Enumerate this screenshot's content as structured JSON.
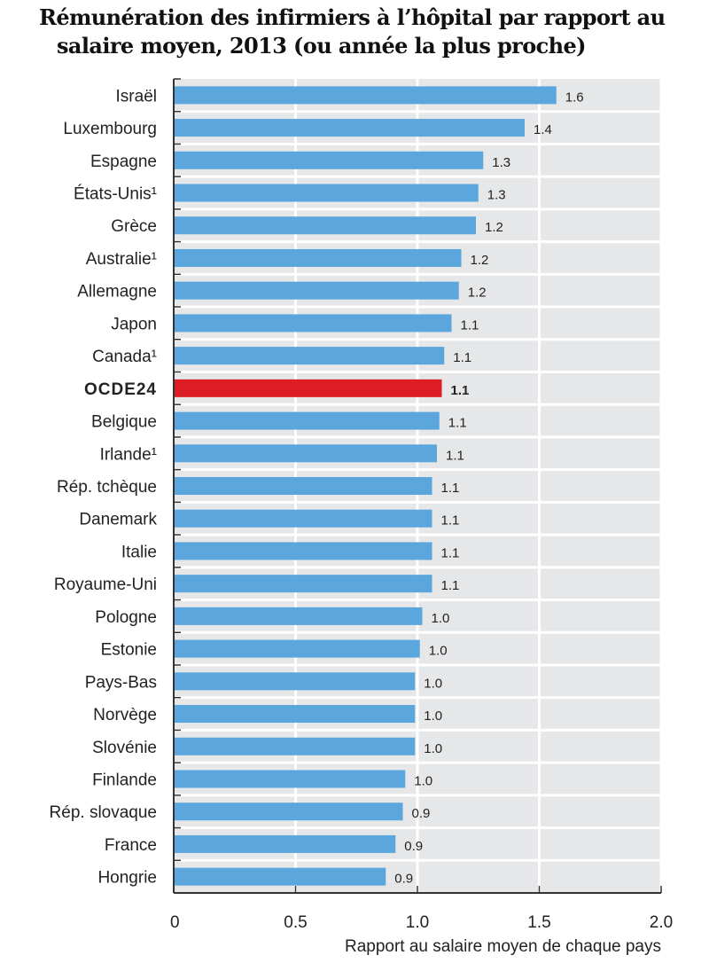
{
  "chart_data": {
    "type": "bar",
    "orientation": "horizontal",
    "title": "Rémunération des infirmiers à l’hôpital par rapport au salaire moyen, 2013 (ou année la plus proche)",
    "title_lines": [
      "Rémunération des infirmiers à l’hôpital par rapport au",
      "salaire moyen, 2013 (ou année la plus proche)"
    ],
    "xlabel": "Rapport au salaire moyen de chaque pays",
    "ylabel": "",
    "xlim": [
      0,
      2.0
    ],
    "xticks": [
      0,
      0.5,
      1.0,
      1.5,
      2.0
    ],
    "xtick_labels": [
      "0",
      "0.5",
      "1.0",
      "1.5",
      "2.0"
    ],
    "grid": true,
    "highlight_category": "OCDE24",
    "colors": {
      "bar": "#5ba6dc",
      "highlight": "#dd1c24",
      "plot_bg": "#e6e7e8",
      "grid": "#ffffff"
    },
    "categories": [
      "Israël",
      "Luxembourg",
      "Espagne",
      "États-Unis¹",
      "Grèce",
      "Australie¹",
      "Allemagne",
      "Japon",
      "Canada¹",
      "OCDE24",
      "Belgique",
      "Irlande¹",
      "Rép. tchèque",
      "Danemark",
      "Italie",
      "Royaume-Uni",
      "Pologne",
      "Estonie",
      "Pays-Bas",
      "Norvège",
      "Slovénie",
      "Finlande",
      "Rép. slovaque",
      "France",
      "Hongrie"
    ],
    "values": [
      1.57,
      1.44,
      1.27,
      1.25,
      1.24,
      1.18,
      1.17,
      1.14,
      1.11,
      1.1,
      1.09,
      1.08,
      1.06,
      1.06,
      1.06,
      1.06,
      1.02,
      1.01,
      0.99,
      0.99,
      0.99,
      0.95,
      0.94,
      0.91,
      0.87
    ],
    "data_labels": [
      "1.6",
      "1.4",
      "1.3",
      "1.3",
      "1.2",
      "1.2",
      "1.2",
      "1.1",
      "1.1",
      "1.1",
      "1.1",
      "1.1",
      "1.1",
      "1.1",
      "1.1",
      "1.1",
      "1.0",
      "1.0",
      "1.0",
      "1.0",
      "1.0",
      "1.0",
      "0.9",
      "0.9",
      "0.9"
    ]
  }
}
